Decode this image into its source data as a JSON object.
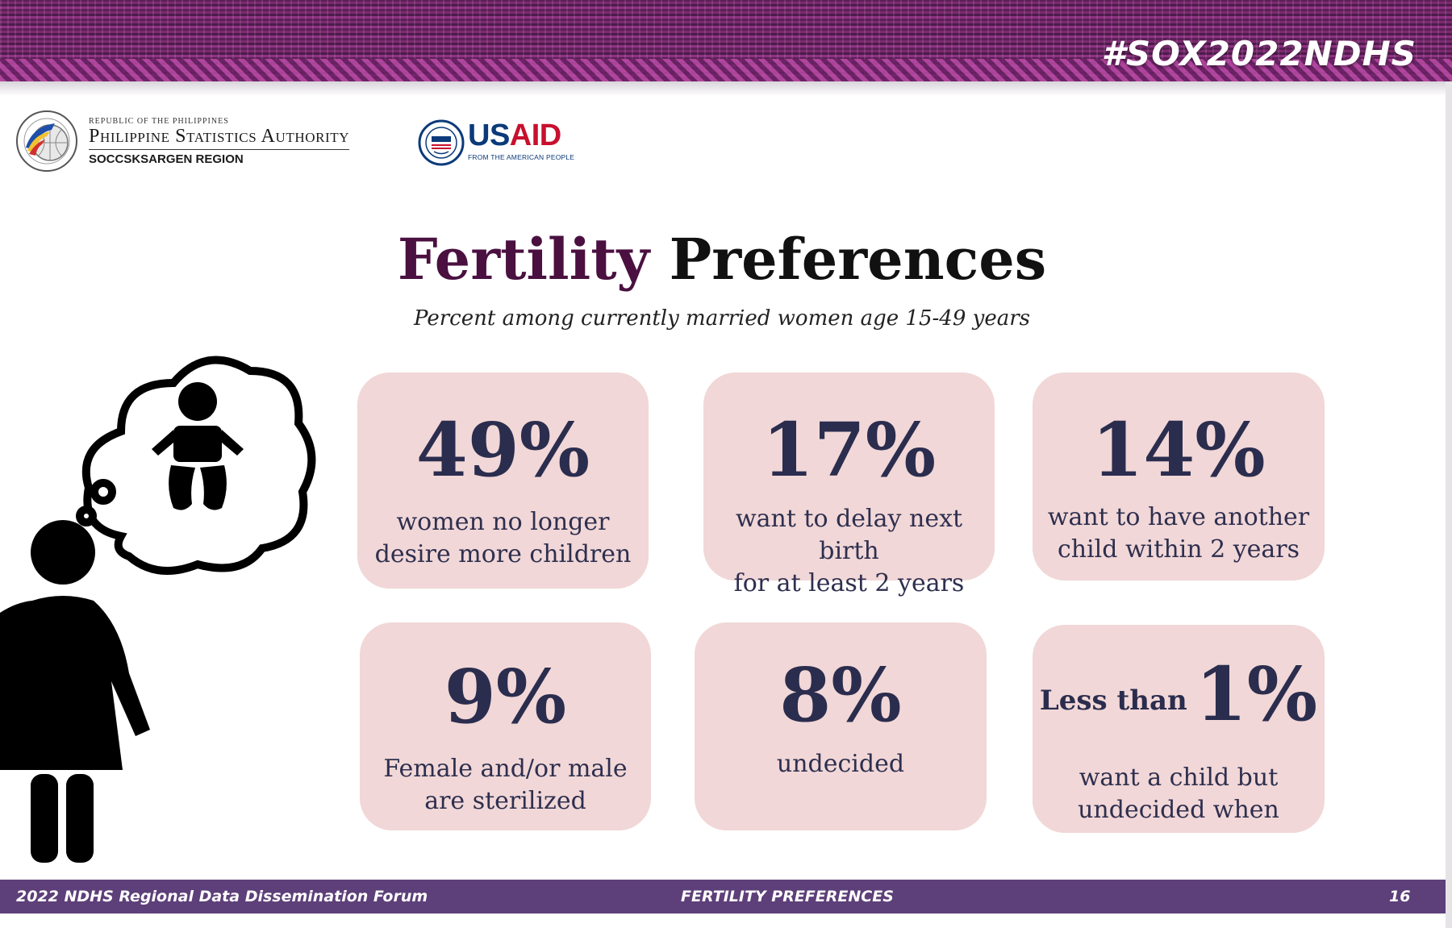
{
  "banner": {
    "hashtag": "#SOX2022NDHS"
  },
  "logos": {
    "psa_republic": "Republic of the Philippines",
    "psa_name": "Philippine Statistics Authority",
    "psa_region": "SOCCSKSARGEN REGION",
    "usaid_us": "US",
    "usaid_aid": "AID",
    "usaid_tagline": "FROM THE AMERICAN PEOPLE"
  },
  "title": {
    "part1": "Fertility",
    "part2": "Preferences"
  },
  "subtitle": "Percent among currently married women age 15-49 years",
  "cards": [
    {
      "value": "49%",
      "desc1": "women no longer",
      "desc2": "desire more children"
    },
    {
      "value": "17%",
      "desc1": "want to delay next birth",
      "desc2": "for at least 2 years"
    },
    {
      "value": "14%",
      "desc1": "want to have another",
      "desc2": "child within 2 years"
    },
    {
      "value": "9%",
      "desc1": "Female and/or male",
      "desc2": "are sterilized"
    },
    {
      "value": "8%",
      "desc1": "undecided",
      "desc2": ""
    },
    {
      "prefix": "Less than",
      "value": "1%",
      "desc1": "want a child but",
      "desc2": "undecided when"
    }
  ],
  "footer": {
    "left": "2022 NDHS Regional Data Dissemination Forum",
    "center": "FERTILITY PREFERENCES",
    "page": "16"
  },
  "colors": {
    "card_bg": "#f1d7d7",
    "number_text": "#2b2d4e",
    "title_accent": "#4a1040",
    "footer_bg": "#5d3f79",
    "banner_purple": "#7a2a6e"
  },
  "icons": {
    "psa_logo": "psa-globe-seal-icon",
    "usaid_logo": "usaid-seal-icon",
    "illustration": "woman-thinking-of-baby-icon"
  }
}
